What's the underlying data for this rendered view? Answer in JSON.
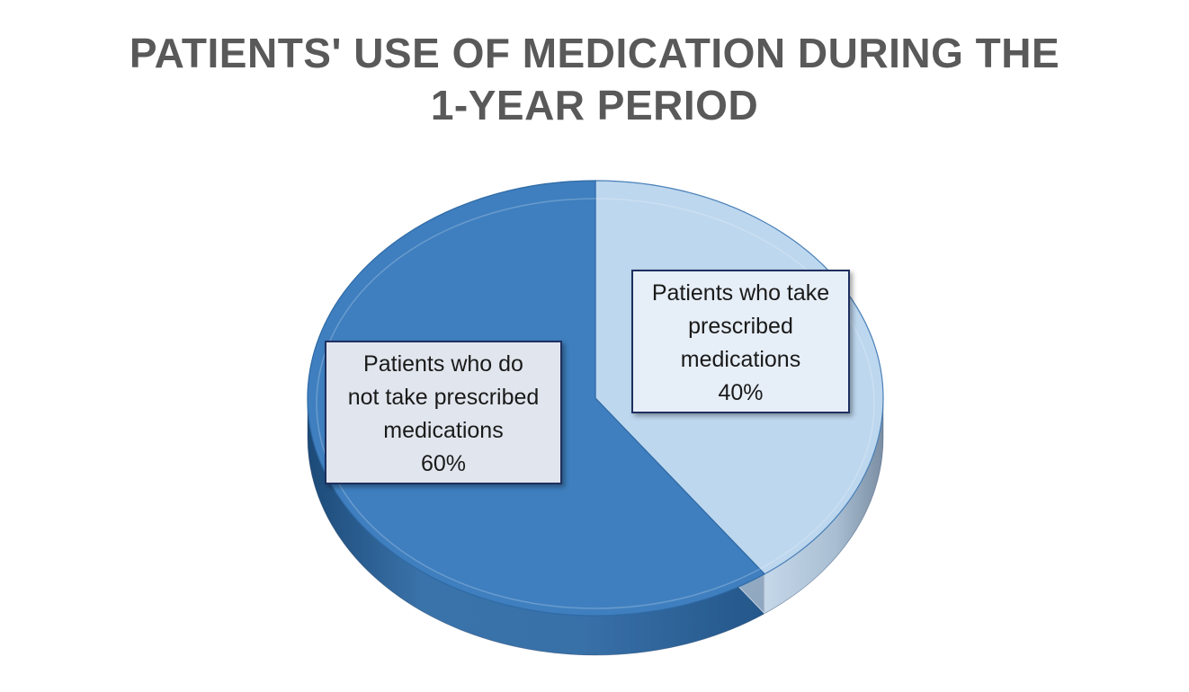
{
  "chart_data": {
    "type": "pie",
    "title": "PATIENTS' USE OF MEDICATION DURING THE 1-YEAR PERIOD",
    "title_lines": [
      "PATIENTS' USE OF MEDICATION DURING THE",
      "1-YEAR PERIOD"
    ],
    "style": "3d",
    "legend": "none",
    "slices": [
      {
        "label": "Patients who take prescribed medications",
        "label_lines": [
          "Patients who take",
          "prescribed",
          "medications"
        ],
        "value": 40,
        "value_label": "40%",
        "color": "#bdd7ee"
      },
      {
        "label": "Patients who do not take prescribed medications",
        "label_lines": [
          "Patients who do",
          "not take prescribed",
          "medications"
        ],
        "value": 60,
        "value_label": "60%",
        "color": "#3f7fbf"
      }
    ]
  }
}
